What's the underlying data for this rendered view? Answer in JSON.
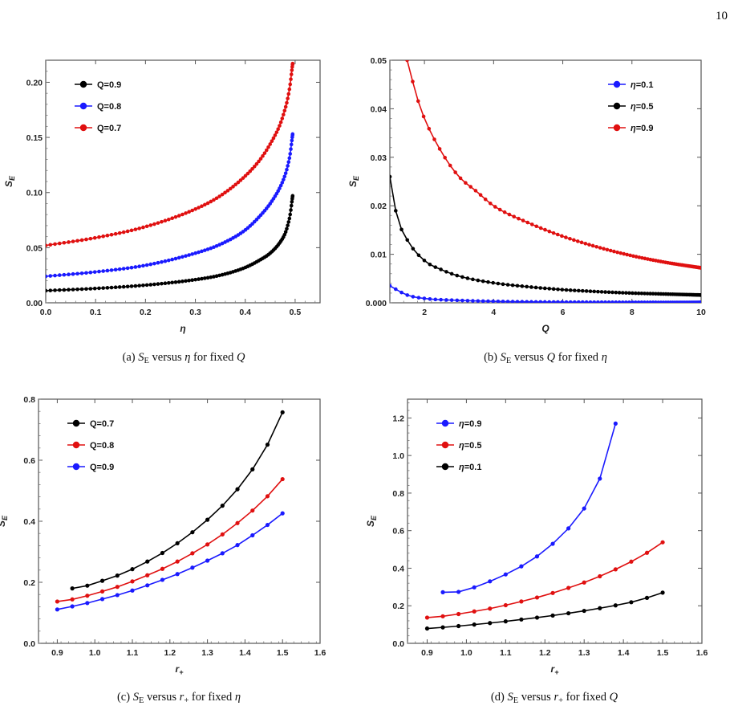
{
  "page_number": "10",
  "chart_data": [
    {
      "id": "a",
      "type": "line",
      "caption": "(a) S_E versus η for fixed Q",
      "xlabel": "η",
      "ylabel": "S_E",
      "xlim": [
        0,
        0.55
      ],
      "ylim": [
        0,
        0.22
      ],
      "xticks": [
        0.0,
        0.1,
        0.2,
        0.3,
        0.4,
        0.5
      ],
      "xtick_labels": [
        "0.0",
        "0.1",
        "0.2",
        "0.3",
        "0.4",
        "0.5"
      ],
      "yticks": [
        0.0,
        0.05,
        0.1,
        0.15,
        0.2
      ],
      "ytick_labels": [
        "0.00",
        "0.05",
        "0.10",
        "0.15",
        "0.20"
      ],
      "legend_position": "top-left",
      "marker_density": "dense",
      "series": [
        {
          "name": "Q=0.9",
          "color": "#000000",
          "x": [
            0.0,
            0.1,
            0.2,
            0.3,
            0.35,
            0.4,
            0.43,
            0.45,
            0.47,
            0.48,
            0.485,
            0.49,
            0.495
          ],
          "y": [
            0.011,
            0.013,
            0.016,
            0.021,
            0.025,
            0.032,
            0.039,
            0.045,
            0.055,
            0.063,
            0.07,
            0.08,
            0.097
          ]
        },
        {
          "name": "Q=0.8",
          "color": "#1a1aff",
          "x": [
            0.0,
            0.1,
            0.2,
            0.3,
            0.35,
            0.4,
            0.43,
            0.45,
            0.47,
            0.48,
            0.485,
            0.49,
            0.495
          ],
          "y": [
            0.024,
            0.028,
            0.034,
            0.045,
            0.053,
            0.066,
            0.079,
            0.09,
            0.105,
            0.116,
            0.124,
            0.135,
            0.153
          ]
        },
        {
          "name": "Q=0.7",
          "color": "#e01010",
          "x": [
            0.0,
            0.1,
            0.2,
            0.3,
            0.35,
            0.4,
            0.43,
            0.45,
            0.47,
            0.48,
            0.485,
            0.49,
            0.495
          ],
          "y": [
            0.052,
            0.059,
            0.069,
            0.085,
            0.097,
            0.115,
            0.13,
            0.144,
            0.162,
            0.176,
            0.185,
            0.198,
            0.217
          ]
        }
      ]
    },
    {
      "id": "b",
      "type": "line",
      "caption": "(b) S_E versus Q for fixed η",
      "xlabel": "Q",
      "ylabel": "S_E",
      "xlim": [
        1,
        10
      ],
      "ylim": [
        0,
        0.05
      ],
      "xticks": [
        2,
        4,
        6,
        8,
        10
      ],
      "xtick_labels": [
        "2",
        "4",
        "6",
        "8",
        "10"
      ],
      "yticks": [
        0.0,
        0.01,
        0.02,
        0.03,
        0.04,
        0.05
      ],
      "ytick_labels": [
        "0.000",
        "0.01",
        "0.02",
        "0.03",
        "0.04",
        "0.05"
      ],
      "legend_position": "top-right",
      "marker_density": "dense",
      "series": [
        {
          "name": "η=0.1",
          "color": "#1a1aff",
          "x": [
            1.0,
            1.5,
            2,
            3,
            4,
            5,
            6,
            7,
            8,
            9,
            10
          ],
          "y": [
            0.0035,
            0.0016,
            0.0009,
            0.0005,
            0.0003,
            0.0002,
            0.00015,
            0.00012,
            0.0001,
            8e-05,
            7e-05
          ]
        },
        {
          "name": "η=0.5",
          "color": "#000000",
          "x": [
            1.0,
            1.2,
            1.5,
            2,
            2.5,
            3,
            4,
            5,
            6,
            7,
            8,
            9,
            10
          ],
          "y": [
            0.026,
            0.018,
            0.013,
            0.0087,
            0.0068,
            0.0055,
            0.0041,
            0.0033,
            0.0027,
            0.0023,
            0.002,
            0.0018,
            0.0016
          ]
        },
        {
          "name": "η=0.9",
          "color": "#e01010",
          "x": [
            1.5,
            1.8,
            2,
            2.5,
            3,
            3.5,
            4,
            5,
            6,
            7,
            8,
            9,
            10
          ],
          "y": [
            0.05,
            0.042,
            0.038,
            0.031,
            0.026,
            0.023,
            0.02,
            0.0165,
            0.0137,
            0.0115,
            0.0097,
            0.0083,
            0.0072
          ]
        }
      ]
    },
    {
      "id": "c",
      "type": "line",
      "caption": "(c) S_E versus r+ for fixed η",
      "xlabel": "r+",
      "ylabel": "S_E",
      "xlim": [
        0.85,
        1.6
      ],
      "ylim": [
        0,
        0.8
      ],
      "xticks": [
        0.9,
        1.0,
        1.1,
        1.2,
        1.3,
        1.4,
        1.5,
        1.6
      ],
      "xtick_labels": [
        "0.9",
        "1.0",
        "1.1",
        "1.2",
        "1.3",
        "1.4",
        "1.5",
        "1.6"
      ],
      "yticks": [
        0.0,
        0.2,
        0.4,
        0.6,
        0.8
      ],
      "ytick_labels": [
        "0.0",
        "0.2",
        "0.4",
        "0.6",
        "0.8"
      ],
      "legend_position": "top-left",
      "marker_density": "sparse",
      "series": [
        {
          "name": "Q=0.7",
          "color": "#000000",
          "x": [
            0.94,
            0.98,
            1.02,
            1.06,
            1.1,
            1.14,
            1.18,
            1.22,
            1.26,
            1.3,
            1.34,
            1.38,
            1.42,
            1.46,
            1.5
          ],
          "y": [
            0.18,
            0.189,
            0.205,
            0.222,
            0.243,
            0.268,
            0.296,
            0.328,
            0.364,
            0.405,
            0.451,
            0.505,
            0.57,
            0.651,
            0.757
          ]
        },
        {
          "name": "Q=0.8",
          "color": "#e01010",
          "x": [
            0.9,
            0.94,
            0.98,
            1.02,
            1.06,
            1.1,
            1.14,
            1.18,
            1.22,
            1.26,
            1.3,
            1.34,
            1.38,
            1.42,
            1.46,
            1.5
          ],
          "y": [
            0.137,
            0.144,
            0.156,
            0.17,
            0.185,
            0.203,
            0.223,
            0.244,
            0.268,
            0.295,
            0.324,
            0.357,
            0.394,
            0.435,
            0.482,
            0.538
          ]
        },
        {
          "name": "Q=0.9",
          "color": "#1a1aff",
          "x": [
            0.9,
            0.94,
            0.98,
            1.02,
            1.06,
            1.1,
            1.14,
            1.18,
            1.22,
            1.26,
            1.3,
            1.34,
            1.38,
            1.42,
            1.46,
            1.5
          ],
          "y": [
            0.111,
            0.121,
            0.132,
            0.145,
            0.158,
            0.173,
            0.19,
            0.208,
            0.227,
            0.248,
            0.271,
            0.295,
            0.322,
            0.354,
            0.388,
            0.426
          ]
        }
      ]
    },
    {
      "id": "d",
      "type": "line",
      "caption": "(d) S_E versus r+ for fixed Q",
      "xlabel": "r+",
      "ylabel": "S_E",
      "xlim": [
        0.85,
        1.6
      ],
      "ylim": [
        0,
        1.3
      ],
      "xticks": [
        0.9,
        1.0,
        1.1,
        1.2,
        1.3,
        1.4,
        1.5,
        1.6
      ],
      "xtick_labels": [
        "0.9",
        "1.0",
        "1.1",
        "1.2",
        "1.3",
        "1.4",
        "1.5",
        "1.6"
      ],
      "yticks": [
        0.0,
        0.2,
        0.4,
        0.6,
        0.8,
        1.0,
        1.2
      ],
      "ytick_labels": [
        "0.0",
        "0.2",
        "0.4",
        "0.6",
        "0.8",
        "1.0",
        "1.2"
      ],
      "legend_position": "top-left",
      "marker_density": "sparse",
      "series": [
        {
          "name": "η=0.9",
          "color": "#1a1aff",
          "x": [
            0.94,
            0.98,
            1.02,
            1.06,
            1.1,
            1.14,
            1.18,
            1.22,
            1.26,
            1.3,
            1.34,
            1.38
          ],
          "y": [
            0.272,
            0.274,
            0.298,
            0.33,
            0.367,
            0.41,
            0.463,
            0.53,
            0.612,
            0.718,
            0.877,
            1.17
          ]
        },
        {
          "name": "η=0.5",
          "color": "#e01010",
          "x": [
            0.9,
            0.94,
            0.98,
            1.02,
            1.06,
            1.1,
            1.14,
            1.18,
            1.22,
            1.26,
            1.3,
            1.34,
            1.38,
            1.42,
            1.46,
            1.5
          ],
          "y": [
            0.137,
            0.144,
            0.156,
            0.17,
            0.185,
            0.203,
            0.223,
            0.244,
            0.268,
            0.295,
            0.324,
            0.357,
            0.394,
            0.435,
            0.482,
            0.538
          ]
        },
        {
          "name": "η=0.1",
          "color": "#000000",
          "x": [
            0.9,
            0.94,
            0.98,
            1.02,
            1.06,
            1.1,
            1.14,
            1.18,
            1.22,
            1.26,
            1.3,
            1.34,
            1.38,
            1.42,
            1.46,
            1.5
          ],
          "y": [
            0.079,
            0.085,
            0.092,
            0.1,
            0.108,
            0.117,
            0.127,
            0.137,
            0.148,
            0.16,
            0.173,
            0.187,
            0.202,
            0.219,
            0.242,
            0.27
          ]
        }
      ]
    }
  ]
}
